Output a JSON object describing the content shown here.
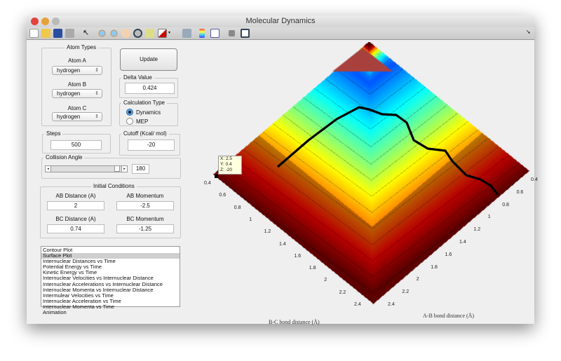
{
  "window": {
    "title": "Molecular Dynamics"
  },
  "toolbar": {
    "icons": [
      "new-file-icon",
      "open-folder-icon",
      "save-icon",
      "print-icon",
      "pointer-icon",
      "zoom-in-icon",
      "zoom-out-icon",
      "pan-hand-icon",
      "rotate-3d-icon",
      "data-cursor-icon",
      "brush-icon",
      "dropdown-arrow-icon",
      "print-figure-icon",
      "colorbar-icon",
      "legend-icon",
      "hide-plot-tools-icon",
      "show-plot-tools-icon"
    ]
  },
  "atom_types": {
    "title": "Atom Types",
    "atoms": [
      {
        "label": "Atom A",
        "value": "hydrogen"
      },
      {
        "label": "Atom B",
        "value": "hydrogen"
      },
      {
        "label": "Atom C",
        "value": "hydrogen"
      }
    ]
  },
  "update_label": "Update",
  "delta": {
    "title": "Delta Value",
    "value": "0.424"
  },
  "calc": {
    "title": "Calculation Type",
    "options": [
      "Dynamics",
      "MEP"
    ],
    "selected": "Dynamics"
  },
  "steps": {
    "title": "Steps",
    "value": "500"
  },
  "cutoff": {
    "title": "Cutoff (Kcal/ mol)",
    "value": "-20"
  },
  "collision": {
    "title": "Collision Angle",
    "value": "180",
    "slider_fraction": 1.0
  },
  "initial": {
    "title": "Initial Conditions",
    "ab_distance_label": "AB Distance (A)",
    "ab_distance": "2",
    "ab_momentum_label": "AB Momentum",
    "ab_momentum": "-2.5",
    "bc_distance_label": "BC Distance (A)",
    "bc_distance": "0.74",
    "bc_momentum_label": "BC Momentum",
    "bc_momentum": "-1.25"
  },
  "plot_list": {
    "items": [
      "Contour Plot",
      "Surface Plot",
      "Internuclear Distances vs Time",
      "Potential Energy vs Time",
      "Kinetic Energy vs Time",
      "Internuclear Velocities vs Internuclear Distance",
      "Internuclear Accelerations vs Internuclear Distance",
      "Internuclear Momenta vs Internuclear Distance",
      "Intermulear Velocities vs Time",
      "Internuclear Acceleration vs Time",
      "Internuclear Momenta vs Time",
      "Animation"
    ],
    "selected": "Surface Plot"
  },
  "plot": {
    "datatip": {
      "x": "X: 2.5",
      "y": "Y: 0.4",
      "z": "Z: -20"
    },
    "xlabel": "A-B bond distance (Å)",
    "ylabel": "B-C bond distance (Å)",
    "ab_ticks": [
      "0.4",
      "0.6",
      "0.8",
      "1",
      "1.2",
      "1.4",
      "1.6",
      "1.8",
      "2",
      "2.2",
      "2.4"
    ],
    "bc_ticks": [
      "0.4",
      "0.6",
      "0.8",
      "1",
      "1.2",
      "1.4",
      "1.6",
      "1.8",
      "2",
      "2.2",
      "2.4"
    ],
    "colormap": "jet"
  }
}
